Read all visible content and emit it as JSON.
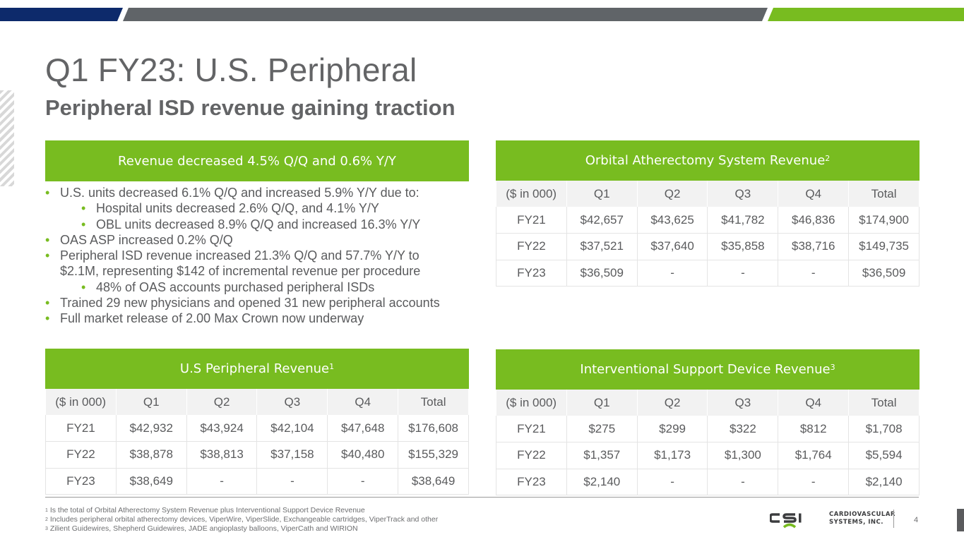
{
  "colors": {
    "navy": "#0d2a6b",
    "gray": "#606468",
    "green": "#78bc20",
    "text": "#5a5b5d"
  },
  "title": "Q1 FY23: U.S. Peripheral",
  "subtitle": "Peripheral ISD revenue gaining traction",
  "summary": {
    "header": "Revenue decreased 4.5% Q/Q and 0.6% Y/Y",
    "bullets": [
      {
        "level": 1,
        "text": "U.S. units decreased 6.1% Q/Q and increased 5.9% Y/Y due to:"
      },
      {
        "level": 2,
        "text": "Hospital units decreased 2.6% Q/Q, and 4.1% Y/Y"
      },
      {
        "level": 2,
        "text": "OBL units decreased 8.9% Q/Q and increased 16.3% Y/Y"
      },
      {
        "level": 1,
        "text": "OAS ASP increased 0.2% Q/Q"
      },
      {
        "level": 1,
        "text": "Peripheral ISD revenue increased 21.3% Q/Q and 57.7% Y/Y to"
      },
      {
        "level": 0,
        "text": "$2.1M, representing $142 of incremental revenue per procedure"
      },
      {
        "level": 2,
        "text": "48% of OAS accounts purchased peripheral ISDs"
      },
      {
        "level": 1,
        "text": "Trained 29 new physicians and opened 31 new peripheral accounts"
      },
      {
        "level": 1,
        "text": "Full market release of 2.00 Max Crown now underway"
      }
    ]
  },
  "tables": {
    "oas": {
      "title": "Orbital Atherectomy System Revenue",
      "note": "2",
      "columns": [
        "($ in 000)",
        "Q1",
        "Q2",
        "Q3",
        "Q4",
        "Total"
      ],
      "rows": [
        [
          "FY21",
          "$42,657",
          "$43,625",
          "$41,782",
          "$46,836",
          "$174,900"
        ],
        [
          "FY22",
          "$37,521",
          "$37,640",
          "$35,858",
          "$38,716",
          "$149,735"
        ],
        [
          "FY23",
          "$36,509",
          "-",
          "-",
          "-",
          "$36,509"
        ]
      ]
    },
    "us": {
      "title": "U.S Peripheral Revenue",
      "note": "1",
      "columns": [
        "($ in 000)",
        "Q1",
        "Q2",
        "Q3",
        "Q4",
        "Total"
      ],
      "rows": [
        [
          "FY21",
          "$42,932",
          "$43,924",
          "$42,104",
          "$47,648",
          "$176,608"
        ],
        [
          "FY22",
          "$38,878",
          "$38,813",
          "$37,158",
          "$40,480",
          "$155,329"
        ],
        [
          "FY23",
          "$38,649",
          "-",
          "-",
          "-",
          "$38,649"
        ]
      ]
    },
    "isd": {
      "title": "Interventional Support Device Revenue",
      "note": "3",
      "columns": [
        "($ in 000)",
        "Q1",
        "Q2",
        "Q3",
        "Q4",
        "Total"
      ],
      "rows": [
        [
          "FY21",
          "$275",
          "$299",
          "$322",
          "$812",
          "$1,708"
        ],
        [
          "FY22",
          "$1,357",
          "$1,173",
          "$1,300",
          "$1,764",
          "$5,594"
        ],
        [
          "FY23",
          "$2,140",
          "-",
          "-",
          "-",
          "$2,140"
        ]
      ]
    }
  },
  "footnotes": [
    {
      "num": "1",
      "text": "Is the total of Orbital Atherectomy System Revenue plus Interventional Support Device Revenue"
    },
    {
      "num": "2",
      "text": "Includes peripheral orbital atherectomy devices, ViperWire, ViperSlide, Exchangeable cartridges, ViperTrack and other"
    },
    {
      "num": "3",
      "text": "Zilient Guidewires, Shepherd Guidewires, JADE angioplasty balloons, ViperCath and WIRION"
    }
  ],
  "logo": {
    "mark": "CSI",
    "line1": "CARDIOVASCULAR",
    "line2": "SYSTEMS, INC."
  },
  "page_number": "4"
}
